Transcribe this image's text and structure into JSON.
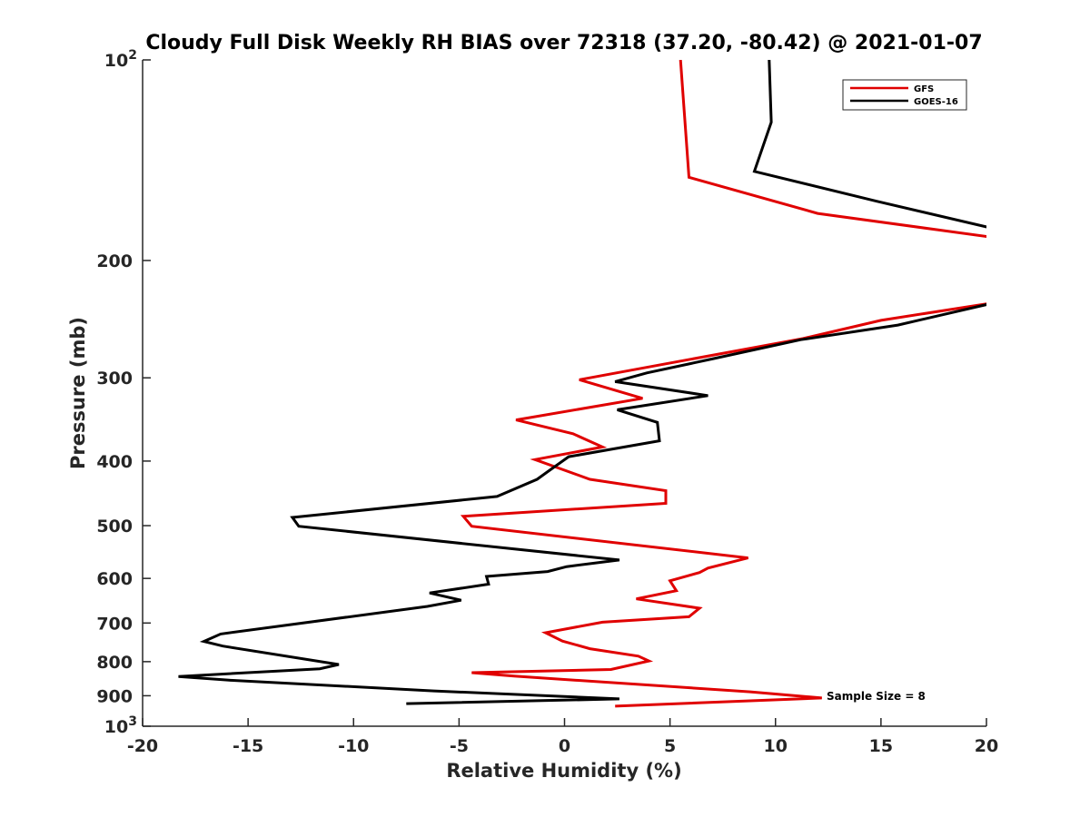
{
  "chart_data": {
    "type": "line",
    "title": "Cloudy Full Disk Weekly RH BIAS over 72318 (37.20, -80.42) @ 2021-01-07",
    "xlabel": "Relative Humidity (%)",
    "ylabel": "Pressure (mb)",
    "xlim": [
      -20,
      20
    ],
    "ylim": [
      100,
      1000
    ],
    "yscale": "log",
    "y_reversed": true,
    "grid": false,
    "legend_position": "top-right",
    "x_ticks": [
      {
        "value": -20,
        "label": "-20"
      },
      {
        "value": -15,
        "label": "-15"
      },
      {
        "value": -10,
        "label": "-10"
      },
      {
        "value": -5,
        "label": "-5"
      },
      {
        "value": 0,
        "label": "0"
      },
      {
        "value": 5,
        "label": "5"
      },
      {
        "value": 10,
        "label": "10"
      },
      {
        "value": 15,
        "label": "15"
      },
      {
        "value": 20,
        "label": "20"
      }
    ],
    "y_ticks": [
      {
        "value": 100,
        "base": "10",
        "exp": "2"
      },
      {
        "value": 200,
        "label": "200"
      },
      {
        "value": 300,
        "label": "300"
      },
      {
        "value": 400,
        "label": "400"
      },
      {
        "value": 500,
        "label": "500"
      },
      {
        "value": 600,
        "label": "600"
      },
      {
        "value": 700,
        "label": "700"
      },
      {
        "value": 800,
        "label": "800"
      },
      {
        "value": 900,
        "label": "900"
      },
      {
        "value": 1000,
        "base": "10",
        "exp": "3"
      }
    ],
    "annotation": "Sample Size = 8",
    "series": [
      {
        "name": "GFS",
        "color": "#e00000",
        "points": [
          [
            5.5,
            100
          ],
          [
            5.9,
            150
          ],
          [
            12.0,
            170
          ],
          [
            20.5,
            185
          ],
          [
            20.5,
            231
          ],
          [
            15.0,
            246
          ],
          [
            11.3,
            262
          ],
          [
            0.7,
            302
          ],
          [
            3.7,
            322
          ],
          [
            -2.3,
            347
          ],
          [
            0.4,
            364
          ],
          [
            1.8,
            381
          ],
          [
            -1.4,
            398
          ],
          [
            1.2,
            426
          ],
          [
            4.8,
            443
          ],
          [
            4.8,
            463
          ],
          [
            -4.8,
            484
          ],
          [
            -4.4,
            501
          ],
          [
            8.7,
            559
          ],
          [
            6.8,
            579
          ],
          [
            6.4,
            588
          ],
          [
            5.0,
            605
          ],
          [
            5.3,
            626
          ],
          [
            3.4,
            644
          ],
          [
            6.4,
            665
          ],
          [
            5.9,
            685
          ],
          [
            1.8,
            698
          ],
          [
            -0.9,
            724
          ],
          [
            -0.1,
            745
          ],
          [
            1.2,
            765
          ],
          [
            3.5,
            785
          ],
          [
            4.0,
            798
          ],
          [
            2.2,
            822
          ],
          [
            -4.4,
            831
          ],
          [
            -2.4,
            841
          ],
          [
            8.8,
            888
          ],
          [
            12.2,
            907
          ],
          [
            2.4,
            933
          ]
        ]
      },
      {
        "name": "GOES-16",
        "color": "#000000",
        "points": [
          [
            9.7,
            100
          ],
          [
            9.8,
            124
          ],
          [
            9.0,
            147
          ],
          [
            14.8,
            163
          ],
          [
            20.3,
            179
          ],
          [
            20.5,
            231
          ],
          [
            15.8,
            250
          ],
          [
            11.2,
            263
          ],
          [
            7.0,
            281
          ],
          [
            3.9,
            295
          ],
          [
            2.4,
            304
          ],
          [
            6.8,
            319
          ],
          [
            2.5,
            335
          ],
          [
            4.4,
            350
          ],
          [
            4.5,
            373
          ],
          [
            0.2,
            394
          ],
          [
            -0.8,
            415
          ],
          [
            -1.3,
            426
          ],
          [
            -3.2,
            452
          ],
          [
            -12.9,
            486
          ],
          [
            -12.6,
            501
          ],
          [
            2.6,
            563
          ],
          [
            0.1,
            576
          ],
          [
            -0.8,
            586
          ],
          [
            -3.7,
            596
          ],
          [
            -3.6,
            612
          ],
          [
            -6.4,
            631
          ],
          [
            -4.9,
            647
          ],
          [
            -6.5,
            661
          ],
          [
            -16.3,
            727
          ],
          [
            -17.1,
            746
          ],
          [
            -16.2,
            758
          ],
          [
            -10.7,
            808
          ],
          [
            -11.6,
            820
          ],
          [
            -18.3,
            842
          ],
          [
            -15.9,
            853
          ],
          [
            -6.2,
            885
          ],
          [
            2.6,
            910
          ],
          [
            -7.5,
            925
          ]
        ]
      }
    ]
  }
}
